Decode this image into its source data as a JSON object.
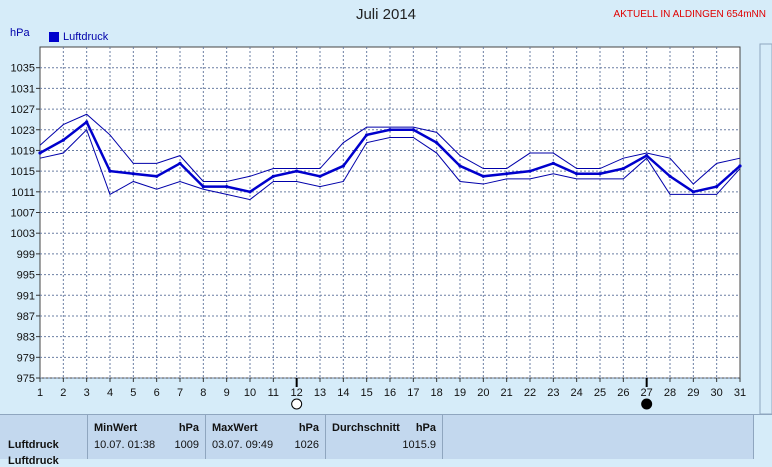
{
  "header": {
    "title": "Juli 2014",
    "location": "AKTUELL IN ALDINGEN 654mNN",
    "unit": "hPa"
  },
  "chart_data": {
    "type": "line",
    "title": "Juli 2014",
    "ylabel": "hPa",
    "ylim": [
      975,
      1039
    ],
    "yticks": [
      975,
      979,
      983,
      987,
      991,
      995,
      999,
      1003,
      1007,
      1011,
      1015,
      1019,
      1023,
      1027,
      1031,
      1035
    ],
    "x": [
      1,
      2,
      3,
      4,
      5,
      6,
      7,
      8,
      9,
      10,
      11,
      12,
      13,
      14,
      15,
      16,
      17,
      18,
      19,
      20,
      21,
      22,
      23,
      24,
      25,
      26,
      27,
      28,
      29,
      30,
      31
    ],
    "grid": true,
    "legend_position": "top-left",
    "series": [
      {
        "name": "Luftdruck",
        "role": "avg",
        "values": [
          1018.5,
          1021,
          1024.5,
          1015,
          1014.5,
          1014,
          1016.5,
          1012,
          1012,
          1011,
          1014,
          1015,
          1014,
          1016,
          1022,
          1023,
          1023,
          1020.5,
          1016,
          1014,
          1014.5,
          1015,
          1016.5,
          1014.5,
          1014.5,
          1015.5,
          1018,
          1014,
          1011,
          1012,
          1016
        ]
      },
      {
        "role": "max",
        "values": [
          1020,
          1024,
          1026,
          1022,
          1016.5,
          1016.5,
          1018,
          1013,
          1013,
          1014,
          1015.5,
          1015.5,
          1015.5,
          1020.5,
          1023.5,
          1023.5,
          1023.5,
          1022.5,
          1018,
          1015.5,
          1015.5,
          1018.5,
          1018.5,
          1015.5,
          1015.5,
          1017.5,
          1018.5,
          1017.5,
          1012.5,
          1016.5,
          1017.5
        ]
      },
      {
        "role": "min",
        "values": [
          1017.5,
          1018.5,
          1023,
          1010.5,
          1013,
          1011.5,
          1013,
          1011.5,
          1010.5,
          1009.5,
          1013,
          1013,
          1012,
          1013,
          1020.5,
          1021.5,
          1021.5,
          1018.5,
          1013,
          1012.5,
          1013.5,
          1013.5,
          1014.5,
          1013.5,
          1013.5,
          1013.5,
          1017.5,
          1010.5,
          1010.5,
          1010.5,
          1015.5
        ]
      }
    ],
    "moon_phases": [
      {
        "day": 12,
        "phase": "full-moon"
      },
      {
        "day": 27,
        "phase": "new-moon"
      }
    ],
    "colors": {
      "avg": "#0000cc",
      "band": "#0000aa",
      "grid": "#6b7fa3",
      "background": "#ffffff"
    }
  },
  "stats": {
    "row1_label": "Luftdruck",
    "row2_label": "Luftdruck",
    "min_header": "MinWert",
    "min_unit": "hPa",
    "min_date": "10.07. 01:38",
    "min_value": "1009",
    "max_header": "MaxWert",
    "max_unit": "hPa",
    "max_date": "03.07. 09:49",
    "max_value": "1026",
    "avg_header": "Durchschnitt",
    "avg_unit": "hPa",
    "avg_value": "1015.9"
  }
}
